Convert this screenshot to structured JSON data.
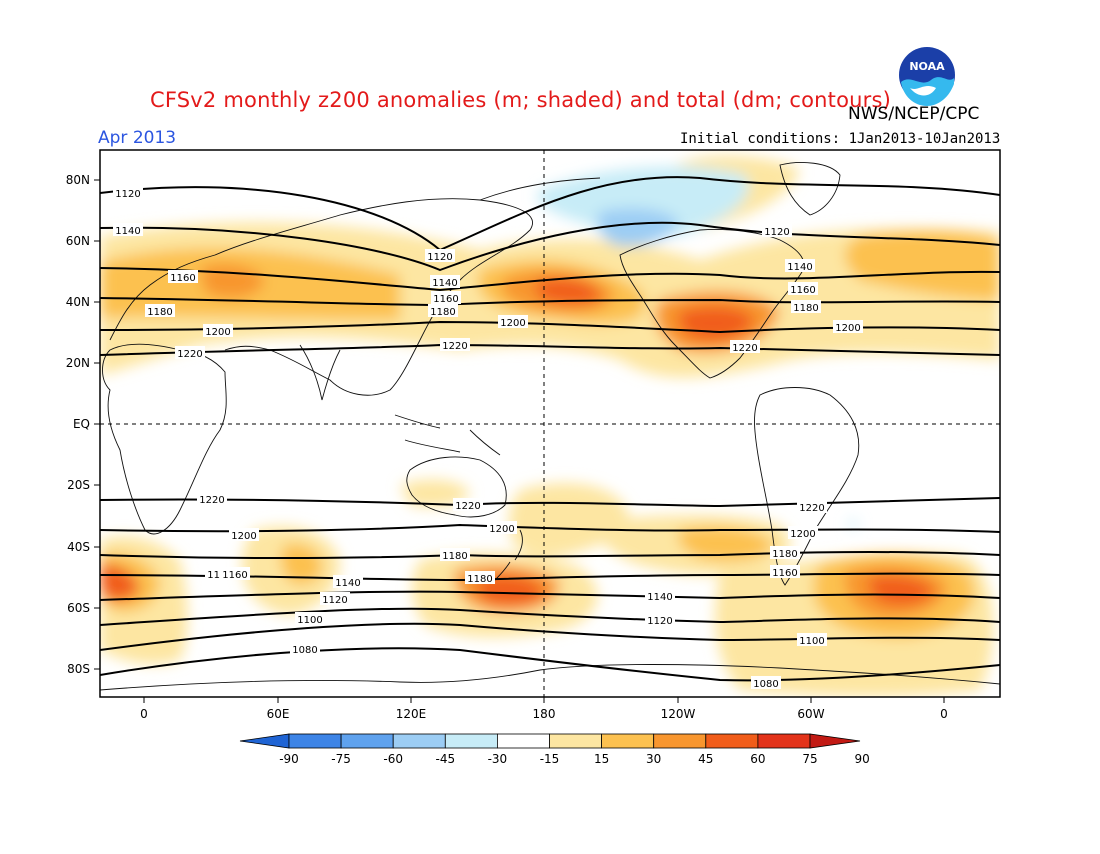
{
  "header": {
    "title": "CFSv2 monthly z200 anomalies (m; shaded) and total (dm; contours)",
    "agency": "NWS/NCEP/CPC",
    "month": "Apr 2013",
    "initial_conditions": "Initial conditions: 1Jan2013-10Jan2013",
    "logo_text": "NOAA"
  },
  "map": {
    "lon_labels": [
      "0",
      "60E",
      "120E",
      "180",
      "120W",
      "60W",
      "0"
    ],
    "lat_labels": [
      "80N",
      "60N",
      "40N",
      "20N",
      "EQ",
      "20S",
      "40S",
      "60S",
      "80S"
    ]
  },
  "colorbar": {
    "ticks": [
      "-90",
      "-75",
      "-60",
      "-45",
      "-30",
      "-15",
      "15",
      "30",
      "45",
      "60",
      "75",
      "90"
    ],
    "colors": [
      "#1f64d4",
      "#3d84e6",
      "#5fa2ee",
      "#9ccdf4",
      "#c7ecf7",
      "#ffffff",
      "#fde6a2",
      "#fcc150",
      "#f8962e",
      "#f15d1a",
      "#e3331a",
      "#c21a14"
    ],
    "positive_colors": {
      "30": "#fde6a2",
      "45": "#fcc150",
      "60": "#f8962e",
      "75": "#f15d1a",
      "90": "#e3331a"
    },
    "negative_colors": {
      "-30": "#c7ecf7",
      "-45": "#9ccdf4"
    }
  },
  "contour_labels": [
    "1120",
    "1140",
    "1160",
    "1180",
    "1200",
    "1220",
    "1120",
    "1140",
    "1160",
    "1180",
    "1200",
    "1220",
    "1120",
    "1140",
    "1160",
    "1180",
    "1200",
    "1220",
    "1220",
    "1200",
    "1180",
    "1160",
    "1140",
    "1120",
    "1100",
    "1080",
    "1220",
    "1200",
    "1180",
    "1160",
    "1140",
    "1120",
    "1220",
    "1200",
    "1180",
    "1160",
    "1100",
    "1080"
  ]
}
